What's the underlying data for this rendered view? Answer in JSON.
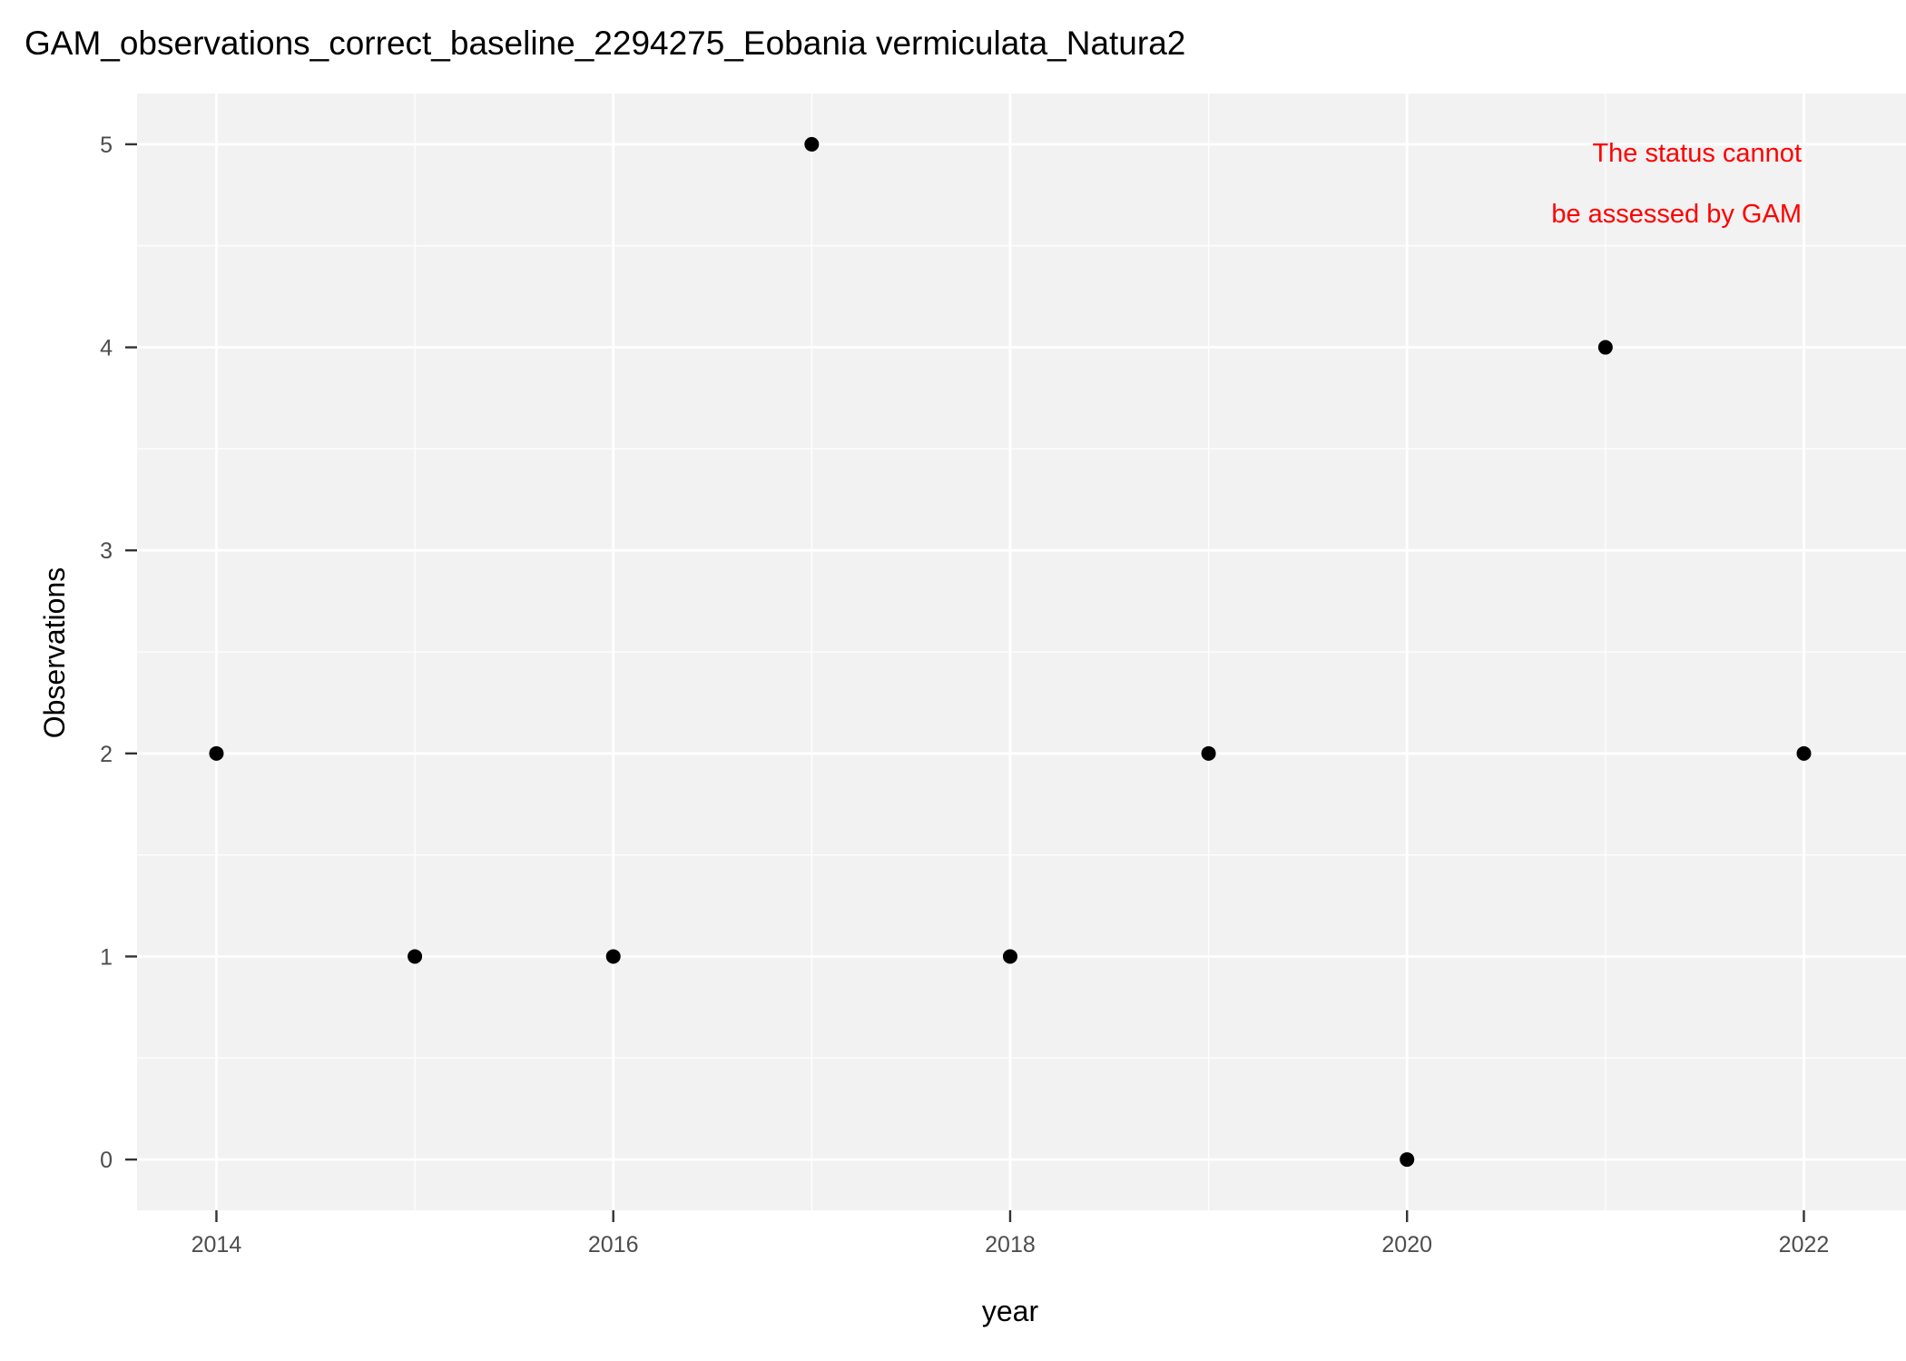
{
  "chart_data": {
    "type": "scatter",
    "title": "GAM_observations_correct_baseline_2294275_Eobania vermiculata_Natura2",
    "x_label": "year",
    "y_label": "Observations",
    "annotation": [
      "The status cannot",
      "be assessed by GAM"
    ],
    "annotation_color": "#ff0000",
    "x": [
      2014,
      2015,
      2016,
      2017,
      2018,
      2019,
      2020,
      2021,
      2022
    ],
    "values": [
      2,
      1,
      1,
      5,
      1,
      2,
      0,
      4,
      2
    ],
    "color": "#000000",
    "xlim": [
      2013.6,
      2022.5
    ],
    "xticks": [
      2014,
      2016,
      2018,
      2020,
      2022
    ],
    "ylim": [
      -0.25,
      5.25
    ],
    "yticks": [
      0,
      1,
      2,
      3,
      4,
      5
    ],
    "grid": true
  }
}
